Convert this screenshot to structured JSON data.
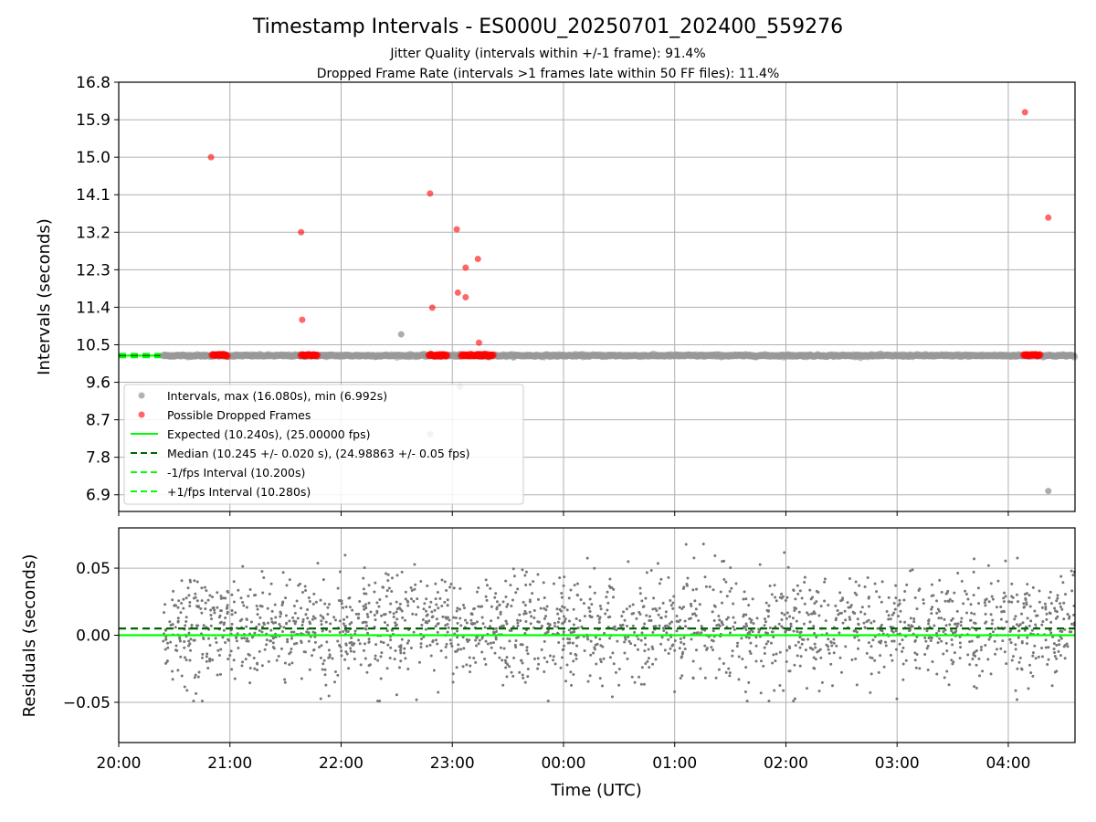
{
  "chart_data": [
    {
      "type": "scatter",
      "title": "Timestamp Intervals - ES000U_20250701_202400_559276",
      "subtitle_lines": [
        "Jitter Quality (intervals within +/-1 frame): 91.4%",
        "Dropped Frame Rate (intervals >1 frames late within 50 FF files): 11.4%"
      ],
      "ylabel": "Intervals (seconds)",
      "xlim_hours": [
        20.0,
        28.6
      ],
      "ylim": [
        6.5,
        16.8
      ],
      "yticks": [
        6.9,
        7.8,
        8.7,
        9.6,
        10.5,
        11.4,
        12.3,
        13.2,
        14.1,
        15.0,
        15.9,
        16.8
      ],
      "ytick_labels": [
        "6.9",
        "7.8",
        "8.7",
        "9.6",
        "10.5",
        "11.4",
        "12.3",
        "13.2",
        "14.1",
        "15.0",
        "15.9",
        "16.8"
      ],
      "grid": true,
      "legend_position": "lower-left",
      "series": [
        {
          "name": "Intervals, max (16.080s), min (6.992s)",
          "color": "#999999",
          "band": {
            "x_start": 20.4,
            "x_end": 28.6,
            "y": 10.24
          },
          "points": [
            {
              "x": 22.54,
              "y": 10.75
            },
            {
              "x": 22.8,
              "y": 8.35
            },
            {
              "x": 23.07,
              "y": 9.49
            },
            {
              "x": 28.36,
              "y": 6.99
            }
          ]
        },
        {
          "name": "Possible Dropped Frames",
          "color": "#ff0000",
          "clusters": [
            {
              "x_start": 20.84,
              "x_end": 20.98,
              "y": 10.25
            },
            {
              "x_start": 21.64,
              "x_end": 21.79,
              "y": 10.25
            },
            {
              "x_start": 23.23,
              "x_end": 23.37,
              "y": 10.25
            },
            {
              "x_start": 22.79,
              "x_end": 22.95,
              "y": 10.25
            },
            {
              "x_start": 23.08,
              "x_end": 23.28,
              "y": 10.25
            },
            {
              "x_start": 28.14,
              "x_end": 28.29,
              "y": 10.25
            }
          ],
          "points": [
            {
              "x": 20.83,
              "y": 15.0
            },
            {
              "x": 21.64,
              "y": 13.2
            },
            {
              "x": 21.65,
              "y": 11.1
            },
            {
              "x": 23.23,
              "y": 12.56
            },
            {
              "x": 23.24,
              "y": 10.55
            },
            {
              "x": 22.8,
              "y": 14.13
            },
            {
              "x": 22.82,
              "y": 11.39
            },
            {
              "x": 23.04,
              "y": 13.27
            },
            {
              "x": 23.05,
              "y": 11.75
            },
            {
              "x": 23.12,
              "y": 12.35
            },
            {
              "x": 23.12,
              "y": 11.64
            },
            {
              "x": 28.15,
              "y": 16.08
            },
            {
              "x": 28.36,
              "y": 13.55
            }
          ]
        }
      ],
      "lines": [
        {
          "name": "Expected (10.240s), (25.00000 fps)",
          "y": 10.24,
          "color": "#00ff00",
          "style": "solid"
        },
        {
          "name": "Median (10.245 +/- 0.020 s), (24.98863 +/- 0.05 fps)",
          "y": 10.245,
          "color": "#006400",
          "style": "dashed"
        },
        {
          "name": "-1/fps Interval (10.200s)",
          "y": 10.2,
          "color": "#00ff00",
          "style": "dashed"
        },
        {
          "name": "+1/fps Interval (10.280s)",
          "y": 10.28,
          "color": "#00ff00",
          "style": "dashed"
        }
      ]
    },
    {
      "type": "scatter",
      "ylabel": "Residuals (seconds)",
      "xlabel": "Time (UTC)",
      "xlim_hours": [
        20.0,
        28.6
      ],
      "ylim": [
        -0.08,
        0.08
      ],
      "yticks": [
        -0.05,
        0.0,
        0.05
      ],
      "ytick_labels": [
        "−0.05",
        "0.00",
        "0.05"
      ],
      "xticks_hours": [
        20,
        21,
        22,
        23,
        24,
        25,
        26,
        27,
        28
      ],
      "xtick_labels": [
        "20:00",
        "21:00",
        "22:00",
        "23:00",
        "00:00",
        "01:00",
        "02:00",
        "03:00",
        "04:00"
      ],
      "grid": true,
      "series": [
        {
          "name": "Residuals",
          "color": "#777777",
          "x_range": [
            20.4,
            28.6
          ],
          "mean": 0.005,
          "std": 0.02,
          "count": 2000
        }
      ],
      "lines": [
        {
          "y": 0.0,
          "color": "#00ff00",
          "style": "solid"
        },
        {
          "y": 0.005,
          "color": "#006400",
          "style": "dashed"
        }
      ]
    }
  ]
}
